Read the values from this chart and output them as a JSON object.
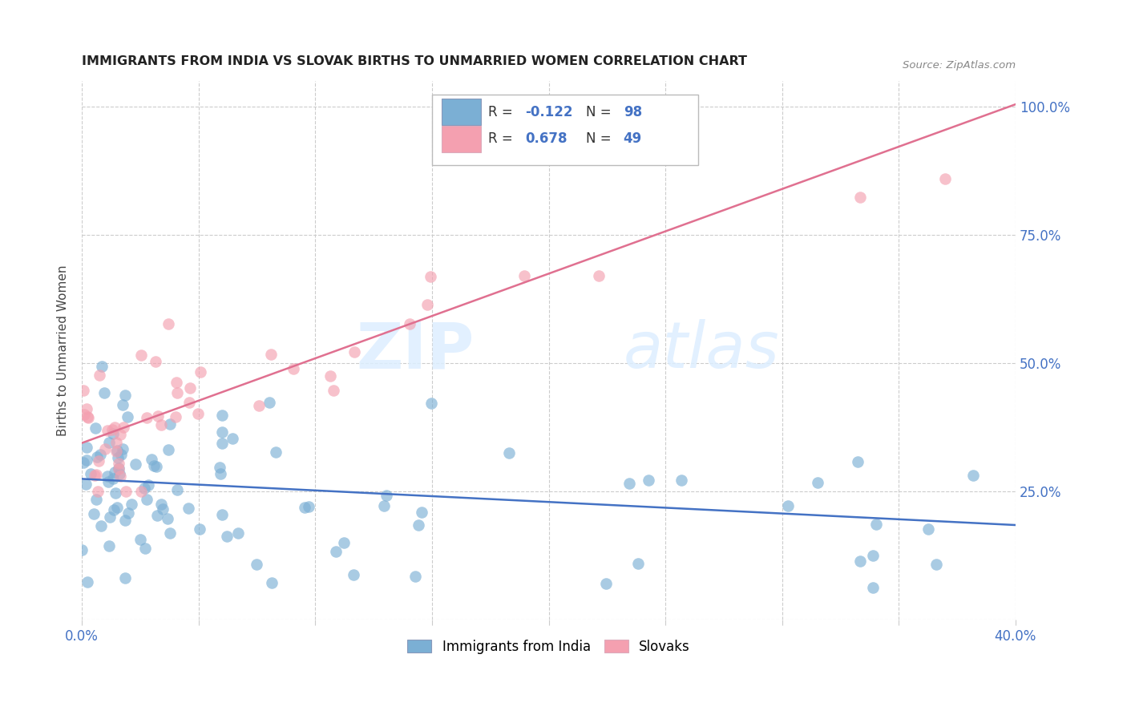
{
  "title": "IMMIGRANTS FROM INDIA VS SLOVAK BIRTHS TO UNMARRIED WOMEN CORRELATION CHART",
  "source": "Source: ZipAtlas.com",
  "ylabel_label": "Births to Unmarried Women",
  "x_min": 0.0,
  "x_max": 0.4,
  "y_min": 0.0,
  "y_max": 1.05,
  "x_tick_positions": [
    0.0,
    0.05,
    0.1,
    0.15,
    0.2,
    0.25,
    0.3,
    0.35,
    0.4
  ],
  "x_tick_labels": [
    "0.0%",
    "",
    "",
    "",
    "",
    "",
    "",
    "",
    "40.0%"
  ],
  "y_tick_positions": [
    0.0,
    0.25,
    0.5,
    0.75,
    1.0
  ],
  "y_tick_labels": [
    "",
    "25.0%",
    "50.0%",
    "75.0%",
    "100.0%"
  ],
  "blue_color": "#7BAFD4",
  "pink_color": "#F4A0B0",
  "blue_line_color": "#4472C4",
  "pink_line_color": "#E07090",
  "watermark_zip": "ZIP",
  "watermark_atlas": "atlas",
  "legend_R_blue": "-0.122",
  "legend_N_blue": "98",
  "legend_R_pink": "0.678",
  "legend_N_pink": "49",
  "blue_line_x": [
    0.0,
    0.4
  ],
  "blue_line_y": [
    0.275,
    0.185
  ],
  "pink_line_x": [
    0.0,
    0.4
  ],
  "pink_line_y": [
    0.345,
    1.005
  ]
}
